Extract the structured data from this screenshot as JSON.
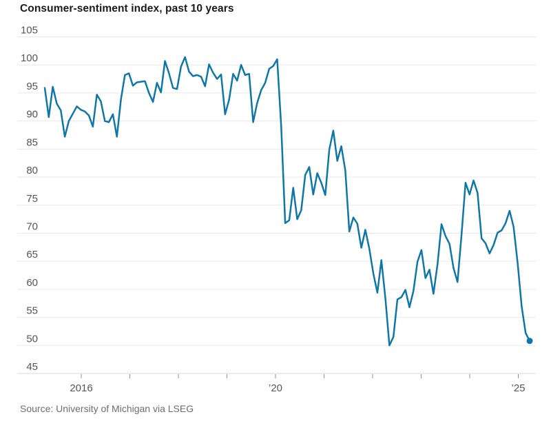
{
  "header": {
    "title": "Consumer-sentiment index, past 10 years"
  },
  "source": {
    "text": "Source: University of Michigan via LSEG"
  },
  "colors": {
    "background": "#ffffff",
    "line": "#0e76a8",
    "end_dot": "#0e76a8",
    "gridline": "#e9e9e9",
    "axis_line": "#d9d9d9",
    "tick_mark": "#8f8f8f",
    "axis_label": "#555555",
    "title_text": "#1b1b1b",
    "source_text": "#6d6d6d"
  },
  "chart_data": {
    "type": "line",
    "title": "Consumer-sentiment index, past 10 years",
    "xlabel": "",
    "ylabel": "",
    "frequency": "monthly",
    "x_start": "2015-04",
    "x_end": "2025-05",
    "ylim": [
      45,
      105
    ],
    "y_ticks": [
      45,
      50,
      55,
      60,
      65,
      70,
      75,
      80,
      85,
      90,
      95,
      100,
      105
    ],
    "grid": "horizontal",
    "legend": "none",
    "end_dot": true,
    "x_ticks": [
      {
        "year": 2016,
        "label": "2016"
      },
      {
        "year": 2017,
        "label": ""
      },
      {
        "year": 2018,
        "label": ""
      },
      {
        "year": 2019,
        "label": ""
      },
      {
        "year": 2020,
        "label": "’20"
      },
      {
        "year": 2021,
        "label": ""
      },
      {
        "year": 2022,
        "label": ""
      },
      {
        "year": 2023,
        "label": ""
      },
      {
        "year": 2024,
        "label": ""
      },
      {
        "year": 2025,
        "label": "’25"
      }
    ],
    "series": [
      {
        "name": "Consumer-sentiment index",
        "values": [
          95.9,
          90.7,
          96.1,
          93.1,
          91.9,
          87.2,
          90.0,
          91.3,
          92.6,
          92.0,
          91.7,
          91.0,
          89.0,
          94.7,
          93.5,
          90.0,
          89.8,
          91.2,
          87.2,
          93.8,
          98.2,
          98.5,
          96.3,
          96.9,
          97.0,
          97.1,
          95.0,
          93.4,
          96.8,
          95.1,
          100.7,
          98.5,
          95.9,
          95.7,
          99.7,
          101.4,
          98.8,
          98.0,
          98.2,
          97.9,
          96.2,
          100.1,
          98.6,
          97.5,
          98.3,
          91.2,
          93.8,
          98.4,
          97.2,
          100.0,
          98.2,
          98.4,
          89.8,
          93.2,
          95.5,
          96.8,
          99.3,
          99.8,
          101.0,
          89.1,
          71.8,
          72.3,
          78.1,
          72.5,
          74.1,
          80.4,
          81.8,
          76.9,
          80.7,
          79.0,
          76.8,
          84.9,
          88.3,
          82.9,
          85.5,
          81.2,
          70.3,
          72.8,
          71.7,
          67.4,
          70.6,
          67.2,
          62.8,
          59.4,
          65.2,
          58.4,
          50.0,
          51.5,
          58.2,
          58.6,
          59.9,
          56.8,
          59.7,
          64.9,
          67.0,
          62.0,
          63.5,
          59.2,
          64.4,
          71.6,
          69.5,
          68.1,
          63.8,
          61.3,
          69.7,
          79.0,
          76.9,
          79.4,
          77.2,
          69.1,
          68.2,
          66.4,
          67.9,
          70.1,
          70.5,
          71.8,
          74.0,
          71.1,
          64.7,
          57.0,
          52.2,
          50.8
        ]
      }
    ]
  }
}
